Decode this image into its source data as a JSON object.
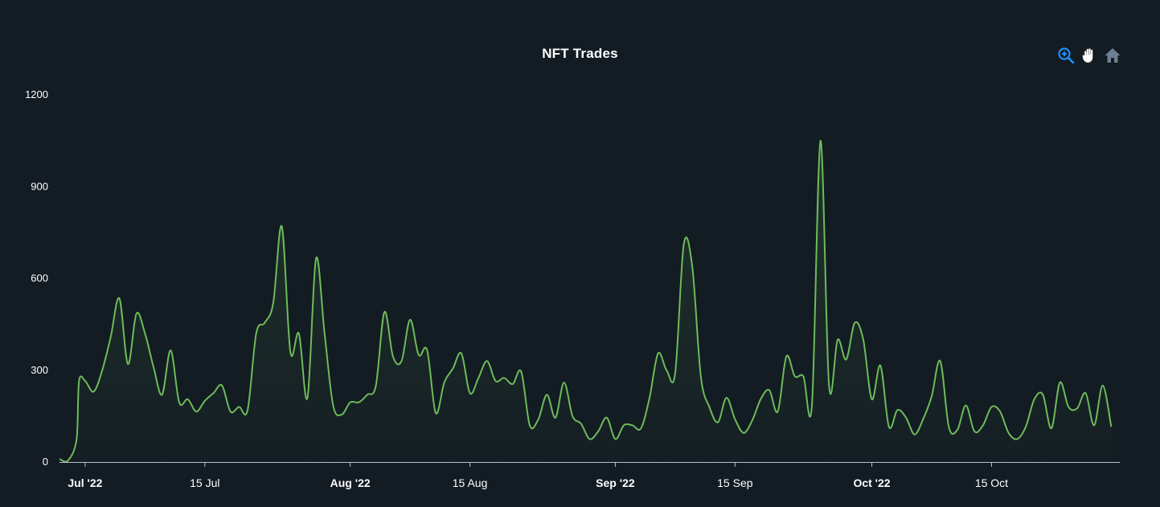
{
  "toolbar": {
    "zoom_icon": "zoom-in-icon",
    "pan_icon": "hand-pan-icon",
    "reset_icon": "home-icon",
    "active_color": "#1e90ff",
    "inactive_color": "#6e7f92"
  },
  "chart_data": {
    "type": "area",
    "title": "NFT Trades",
    "xlabel": "",
    "ylabel": "",
    "ylim": [
      0,
      1200
    ],
    "yticks": [
      0,
      300,
      600,
      900,
      1200
    ],
    "x_start": "2022-06-28",
    "x_end": "2022-10-30",
    "xticks": [
      {
        "date": "2022-07-01",
        "label": "Jul '22",
        "major": true
      },
      {
        "date": "2022-07-15",
        "label": "15 Jul",
        "major": false
      },
      {
        "date": "2022-08-01",
        "label": "Aug '22",
        "major": true
      },
      {
        "date": "2022-08-15",
        "label": "15 Aug",
        "major": false
      },
      {
        "date": "2022-09-01",
        "label": "Sep '22",
        "major": true
      },
      {
        "date": "2022-09-15",
        "label": "15 Sep",
        "major": false
      },
      {
        "date": "2022-10-01",
        "label": "Oct '22",
        "major": true
      },
      {
        "date": "2022-10-15",
        "label": "15 Oct",
        "major": false
      }
    ],
    "line_color": "#6dbb5a",
    "grid": false,
    "series": [
      {
        "values": [
          [
            "2022-06-28",
            10
          ],
          [
            "2022-06-29",
            5
          ],
          [
            "2022-06-30",
            75
          ],
          [
            "2022-06-30",
            265
          ],
          [
            "2022-07-01",
            265
          ],
          [
            "2022-07-02",
            230
          ],
          [
            "2022-07-03",
            300
          ],
          [
            "2022-07-04",
            410
          ],
          [
            "2022-07-05",
            535
          ],
          [
            "2022-07-06",
            320
          ],
          [
            "2022-07-07",
            485
          ],
          [
            "2022-07-08",
            420
          ],
          [
            "2022-07-09",
            310
          ],
          [
            "2022-07-10",
            220
          ],
          [
            "2022-07-11",
            365
          ],
          [
            "2022-07-12",
            195
          ],
          [
            "2022-07-13",
            205
          ],
          [
            "2022-07-14",
            165
          ],
          [
            "2022-07-15",
            200
          ],
          [
            "2022-07-16",
            225
          ],
          [
            "2022-07-17",
            250
          ],
          [
            "2022-07-18",
            165
          ],
          [
            "2022-07-19",
            180
          ],
          [
            "2022-07-20",
            170
          ],
          [
            "2022-07-21",
            420
          ],
          [
            "2022-07-22",
            455
          ],
          [
            "2022-07-23",
            520
          ],
          [
            "2022-07-24",
            770
          ],
          [
            "2022-07-25",
            360
          ],
          [
            "2022-07-26",
            420
          ],
          [
            "2022-07-27",
            210
          ],
          [
            "2022-07-28",
            665
          ],
          [
            "2022-07-29",
            420
          ],
          [
            "2022-07-30",
            185
          ],
          [
            "2022-07-31",
            155
          ],
          [
            "2022-08-01",
            195
          ],
          [
            "2022-08-02",
            195
          ],
          [
            "2022-08-03",
            220
          ],
          [
            "2022-08-04",
            250
          ],
          [
            "2022-08-05",
            490
          ],
          [
            "2022-08-06",
            345
          ],
          [
            "2022-08-07",
            330
          ],
          [
            "2022-08-08",
            465
          ],
          [
            "2022-08-09",
            350
          ],
          [
            "2022-08-10",
            365
          ],
          [
            "2022-08-11",
            160
          ],
          [
            "2022-08-12",
            260
          ],
          [
            "2022-08-13",
            305
          ],
          [
            "2022-08-14",
            355
          ],
          [
            "2022-08-15",
            225
          ],
          [
            "2022-08-16",
            275
          ],
          [
            "2022-08-17",
            330
          ],
          [
            "2022-08-18",
            265
          ],
          [
            "2022-08-19",
            275
          ],
          [
            "2022-08-20",
            255
          ],
          [
            "2022-08-21",
            295
          ],
          [
            "2022-08-22",
            120
          ],
          [
            "2022-08-23",
            140
          ],
          [
            "2022-08-24",
            220
          ],
          [
            "2022-08-25",
            145
          ],
          [
            "2022-08-26",
            260
          ],
          [
            "2022-08-27",
            150
          ],
          [
            "2022-08-28",
            125
          ],
          [
            "2022-08-29",
            75
          ],
          [
            "2022-08-30",
            100
          ],
          [
            "2022-08-31",
            145
          ],
          [
            "2022-09-01",
            75
          ],
          [
            "2022-09-02",
            120
          ],
          [
            "2022-09-03",
            120
          ],
          [
            "2022-09-04",
            110
          ],
          [
            "2022-09-05",
            210
          ],
          [
            "2022-09-06",
            355
          ],
          [
            "2022-09-07",
            300
          ],
          [
            "2022-09-08",
            290
          ],
          [
            "2022-09-09",
            710
          ],
          [
            "2022-09-10",
            640
          ],
          [
            "2022-09-11",
            280
          ],
          [
            "2022-09-12",
            180
          ],
          [
            "2022-09-13",
            130
          ],
          [
            "2022-09-14",
            210
          ],
          [
            "2022-09-15",
            140
          ],
          [
            "2022-09-16",
            95
          ],
          [
            "2022-09-17",
            135
          ],
          [
            "2022-09-18",
            205
          ],
          [
            "2022-09-19",
            235
          ],
          [
            "2022-09-20",
            165
          ],
          [
            "2022-09-21",
            345
          ],
          [
            "2022-09-22",
            280
          ],
          [
            "2022-09-23",
            280
          ],
          [
            "2022-09-24",
            190
          ],
          [
            "2022-09-25",
            1050
          ],
          [
            "2022-09-26",
            250
          ],
          [
            "2022-09-27",
            400
          ],
          [
            "2022-09-28",
            335
          ],
          [
            "2022-09-29",
            455
          ],
          [
            "2022-09-30",
            400
          ],
          [
            "2022-10-01",
            205
          ],
          [
            "2022-10-02",
            315
          ],
          [
            "2022-10-03",
            115
          ],
          [
            "2022-10-04",
            170
          ],
          [
            "2022-10-05",
            145
          ],
          [
            "2022-10-06",
            90
          ],
          [
            "2022-10-07",
            140
          ],
          [
            "2022-10-08",
            215
          ],
          [
            "2022-10-09",
            330
          ],
          [
            "2022-10-10",
            115
          ],
          [
            "2022-10-11",
            105
          ],
          [
            "2022-10-12",
            185
          ],
          [
            "2022-10-13",
            100
          ],
          [
            "2022-10-14",
            120
          ],
          [
            "2022-10-15",
            180
          ],
          [
            "2022-10-16",
            165
          ],
          [
            "2022-10-17",
            95
          ],
          [
            "2022-10-18",
            75
          ],
          [
            "2022-10-19",
            115
          ],
          [
            "2022-10-20",
            205
          ],
          [
            "2022-10-21",
            220
          ],
          [
            "2022-10-22",
            110
          ],
          [
            "2022-10-23",
            260
          ],
          [
            "2022-10-24",
            180
          ],
          [
            "2022-10-25",
            175
          ],
          [
            "2022-10-26",
            225
          ],
          [
            "2022-10-27",
            120
          ],
          [
            "2022-10-28",
            250
          ],
          [
            "2022-10-29",
            115
          ]
        ]
      }
    ]
  }
}
